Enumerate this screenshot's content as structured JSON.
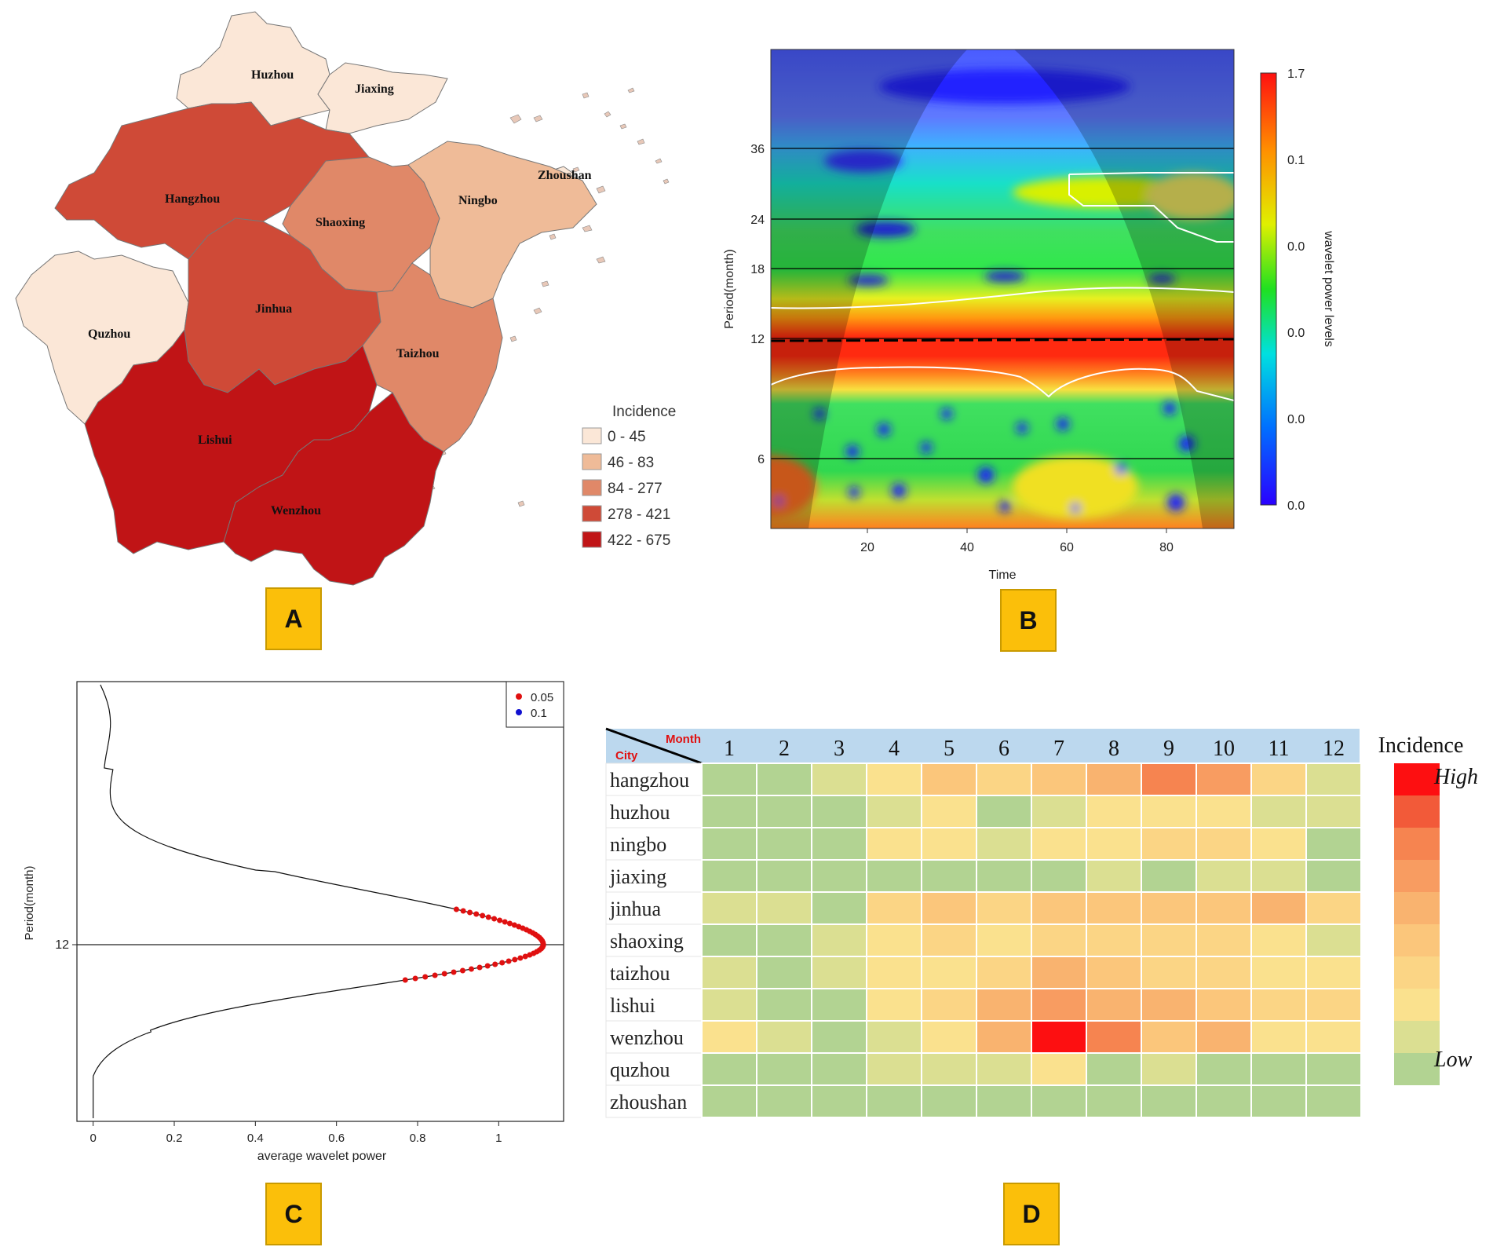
{
  "panels": {
    "a": "A",
    "b": "B",
    "c": "C",
    "d": "D"
  },
  "chart_data": [
    {
      "type": "choropleth",
      "panel": "A",
      "legend_title": "Incidence",
      "classes": [
        {
          "label": "0 - 45",
          "color": "#fbe7d7"
        },
        {
          "label": "46 - 83",
          "color": "#efbb98"
        },
        {
          "label": "84 - 277",
          "color": "#e08868"
        },
        {
          "label": "278 - 421",
          "color": "#cf4a37"
        },
        {
          "label": "422 - 675",
          "color": "#c01416"
        }
      ],
      "regions": [
        {
          "name": "Huzhou",
          "class": 0
        },
        {
          "name": "Jiaxing",
          "class": 0
        },
        {
          "name": "Zhoushan",
          "class": 0
        },
        {
          "name": "Hangzhou",
          "class": 3
        },
        {
          "name": "Shaoxing",
          "class": 2
        },
        {
          "name": "Ningbo",
          "class": 1
        },
        {
          "name": "Quzhou",
          "class": 0
        },
        {
          "name": "Jinhua",
          "class": 3
        },
        {
          "name": "Taizhou",
          "class": 2
        },
        {
          "name": "Lishui",
          "class": 4
        },
        {
          "name": "Wenzhou",
          "class": 4
        }
      ]
    },
    {
      "type": "heatmap",
      "panel": "B",
      "xlabel": "Time",
      "ylabel": "Period(month)",
      "xticks": [
        20,
        40,
        60,
        80
      ],
      "yticks": [
        36,
        24,
        18,
        12,
        6
      ],
      "colorbar_label": "wavelet power levels",
      "colorbar_ticks": [
        "1.7",
        "0.1",
        "0.0",
        "0.0",
        "0.0",
        "0.0"
      ]
    },
    {
      "type": "line",
      "panel": "C",
      "xlabel": "average wavelet power",
      "ylabel": "Period(month)",
      "xticks": [
        "0",
        "0.2",
        "0.4",
        "0.6",
        "0.8",
        "1"
      ],
      "yticks": [
        "12"
      ],
      "xlim": [
        -0.04,
        1.16
      ],
      "peak": {
        "period": 12,
        "power": 1.11
      },
      "legend": [
        {
          "label": "0.05",
          "color": "#e01010"
        },
        {
          "label": "0.1",
          "color": "#1010d0"
        }
      ]
    },
    {
      "type": "heatmap",
      "panel": "D",
      "corner_col": "Month",
      "corner_row": "City",
      "months": [
        "1",
        "2",
        "3",
        "4",
        "5",
        "6",
        "7",
        "8",
        "9",
        "10",
        "11",
        "12"
      ],
      "cities": [
        "hangzhou",
        "huzhou",
        "ningbo",
        "jiaxing",
        "jinhua",
        "shaoxing",
        "taizhou",
        "lishui",
        "wenzhou",
        "quzhou",
        "zhoushan"
      ],
      "levels": [
        [
          0,
          0,
          1,
          2,
          4,
          3,
          4,
          5,
          7,
          6,
          3,
          1
        ],
        [
          0,
          0,
          0,
          1,
          2,
          0,
          1,
          2,
          2,
          2,
          1,
          1
        ],
        [
          0,
          0,
          0,
          2,
          2,
          1,
          2,
          2,
          3,
          3,
          2,
          0
        ],
        [
          0,
          0,
          0,
          0,
          0,
          0,
          0,
          1,
          0,
          1,
          1,
          0
        ],
        [
          1,
          1,
          0,
          3,
          4,
          3,
          4,
          4,
          4,
          4,
          5,
          3
        ],
        [
          0,
          0,
          1,
          2,
          3,
          2,
          3,
          3,
          3,
          3,
          2,
          1
        ],
        [
          1,
          0,
          1,
          2,
          2,
          3,
          5,
          4,
          3,
          3,
          2,
          2
        ],
        [
          1,
          0,
          0,
          2,
          3,
          5,
          6,
          5,
          5,
          4,
          3,
          3
        ],
        [
          2,
          1,
          0,
          1,
          2,
          5,
          9,
          7,
          4,
          5,
          2,
          2
        ],
        [
          0,
          0,
          0,
          1,
          1,
          1,
          2,
          0,
          1,
          0,
          0,
          0
        ],
        [
          0,
          0,
          0,
          0,
          0,
          0,
          0,
          0,
          0,
          0,
          0,
          0
        ]
      ],
      "palette": [
        "#b2d392",
        "#dbdf92",
        "#fae18e",
        "#fbd585",
        "#fbc67b",
        "#f9b36f",
        "#f89c61",
        "#f68450",
        "#f25a39",
        "#fd0f11"
      ],
      "legend_title": "Incidence",
      "legend_high": "High",
      "legend_low": "Low"
    }
  ]
}
